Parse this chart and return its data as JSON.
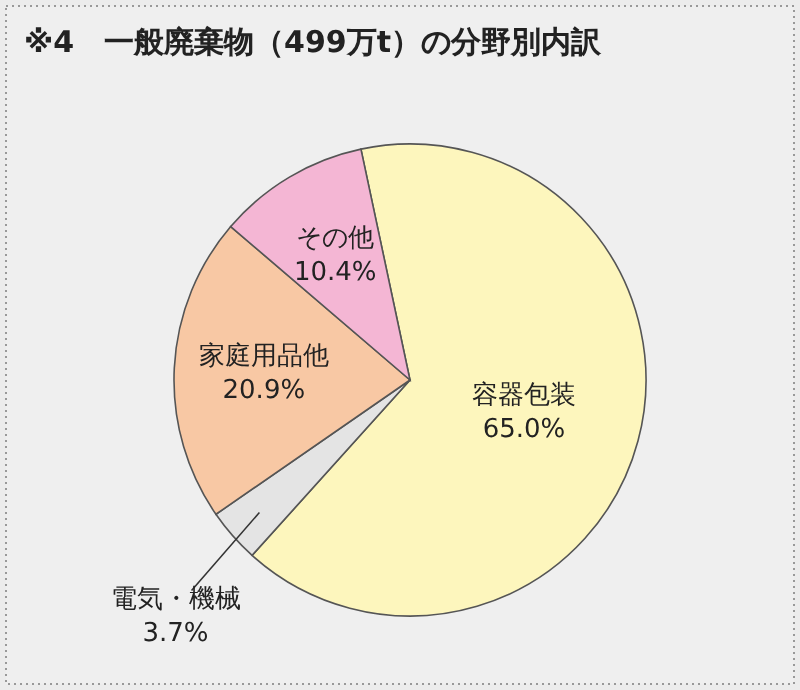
{
  "chart_data": {
    "type": "pie",
    "title": "※4　一般廃棄物（499万t）の分野別内訳",
    "categories": [
      "容器包装",
      "電気・機械",
      "家庭用品他",
      "その他"
    ],
    "values": [
      65.0,
      3.7,
      20.9,
      10.4
    ],
    "value_labels": [
      "65.0%",
      "3.7%",
      "20.9%",
      "10.4%"
    ],
    "colors": [
      "#fdf6bd",
      "#e4e4e4",
      "#f8c8a4",
      "#f4b6d4"
    ]
  }
}
